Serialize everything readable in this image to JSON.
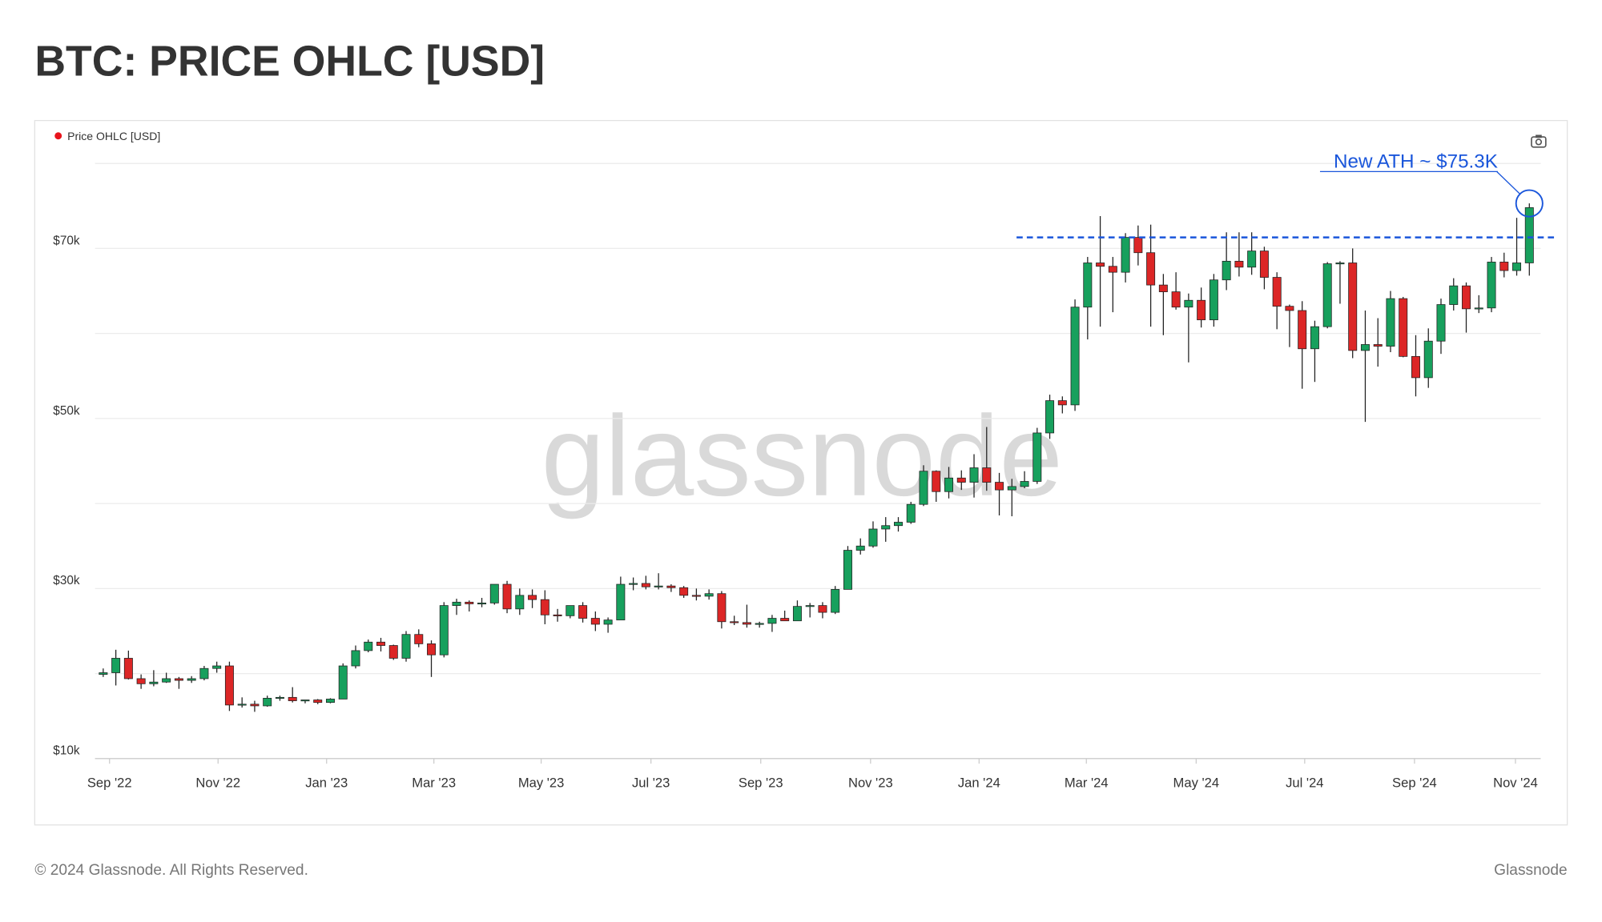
{
  "header": {
    "title": "BTC: PRICE OHLC [USD]"
  },
  "chart_data": {
    "type": "candlestick",
    "series_name": "Price OHLC [USD]",
    "legend_color": "#e8141c",
    "up_color": "#17a05d",
    "down_color": "#dc2626",
    "watermark": "glassnode",
    "ylim": [
      10000,
      80000
    ],
    "yticks": [
      {
        "value": 10000,
        "label": "$10k"
      },
      {
        "value": 30000,
        "label": "$30k"
      },
      {
        "value": 50000,
        "label": "$50k"
      },
      {
        "value": 70000,
        "label": "$70k"
      }
    ],
    "ygrid": [
      20000,
      40000,
      60000,
      80000
    ],
    "xlim": [
      -0.65,
      113.9
    ],
    "xticks": [
      {
        "value": 0.5,
        "label": "Sep '22"
      },
      {
        "value": 9.1,
        "label": "Nov '22"
      },
      {
        "value": 17.7,
        "label": "Jan '23"
      },
      {
        "value": 26.2,
        "label": "Mar '23"
      },
      {
        "value": 34.7,
        "label": "May '23"
      },
      {
        "value": 43.4,
        "label": "Jul '23"
      },
      {
        "value": 52.1,
        "label": "Sep '23"
      },
      {
        "value": 60.8,
        "label": "Nov '23"
      },
      {
        "value": 69.4,
        "label": "Jan '24"
      },
      {
        "value": 77.9,
        "label": "Mar '24"
      },
      {
        "value": 86.6,
        "label": "May '24"
      },
      {
        "value": 95.2,
        "label": "Jul '24"
      },
      {
        "value": 103.9,
        "label": "Sep '24"
      },
      {
        "value": 111.9,
        "label": "Nov '24"
      }
    ],
    "open": [
      19900,
      20100,
      21800,
      19400,
      18800,
      19000,
      19400,
      19200,
      19400,
      20600,
      20900,
      16300,
      16400,
      16200,
      17100,
      17200,
      16800,
      16900,
      16600,
      17000,
      20900,
      22700,
      23700,
      23300,
      21800,
      24600,
      23500,
      22200,
      28000,
      28400,
      28200,
      28300,
      30500,
      27600,
      29200,
      28700,
      26900,
      26800,
      28000,
      26500,
      25800,
      26300,
      30500,
      30600,
      30200,
      30300,
      30100,
      29200,
      29100,
      29400,
      26100,
      26000,
      25800,
      25900,
      26500,
      26200,
      27900,
      28000,
      27200,
      29900,
      34500,
      35000,
      37000,
      37400,
      37800,
      39900,
      43800,
      41400,
      43000,
      42500,
      44200,
      42500,
      41600,
      42000,
      42600,
      48300,
      52100,
      51600,
      63100,
      68300,
      67900,
      67200,
      71300,
      69500,
      65700,
      64900,
      63100,
      63900,
      61600,
      66300,
      68500,
      67800,
      69700,
      66600,
      63200,
      62700,
      58200,
      60800,
      68200,
      68300,
      58000,
      58700,
      58500,
      64100,
      57300,
      54800,
      59100,
      63400,
      65600,
      62900,
      63000,
      68400,
      67400,
      68300
    ],
    "high": [
      20600,
      22800,
      22700,
      19900,
      20400,
      20100,
      19600,
      19700,
      20900,
      21400,
      21400,
      17200,
      16800,
      17400,
      17400,
      18400,
      16900,
      17000,
      17100,
      21200,
      23300,
      24000,
      24200,
      23400,
      25000,
      25200,
      23900,
      28400,
      28800,
      28600,
      28900,
      30500,
      30900,
      30000,
      29900,
      29800,
      27600,
      28000,
      28400,
      27300,
      26600,
      31400,
      31300,
      31500,
      31800,
      30500,
      30300,
      30000,
      29900,
      29700,
      26800,
      28100,
      26100,
      26900,
      27400,
      28600,
      28300,
      28400,
      30300,
      35000,
      35900,
      37900,
      38400,
      38400,
      40200,
      44500,
      43900,
      44300,
      43900,
      45800,
      49000,
      43600,
      42900,
      43800,
      48900,
      52800,
      52600,
      64000,
      69000,
      73800,
      69000,
      71800,
      72700,
      72800,
      67000,
      67200,
      64700,
      65400,
      67000,
      71900,
      71900,
      71900,
      70200,
      67200,
      63400,
      63800,
      61500,
      68400,
      68500,
      70000,
      62700,
      61800,
      65000,
      64300,
      59800,
      60600,
      64100,
      66500,
      66000,
      64500,
      69000,
      69500,
      73600,
      75300
    ],
    "low": [
      19600,
      18600,
      19300,
      18200,
      18500,
      18900,
      18200,
      18900,
      19200,
      20100,
      15600,
      16000,
      15500,
      16100,
      16800,
      16600,
      16500,
      16400,
      16500,
      17000,
      20600,
      22500,
      22600,
      21600,
      21400,
      23100,
      19600,
      21900,
      26900,
      27300,
      27800,
      28100,
      27100,
      26900,
      27700,
      25800,
      26100,
      26500,
      26000,
      25000,
      24800,
      26300,
      29800,
      29900,
      29900,
      29600,
      28900,
      28600,
      28700,
      25300,
      25700,
      25400,
      25400,
      24900,
      26400,
      26200,
      26600,
      26500,
      27000,
      29900,
      34000,
      34800,
      35500,
      36700,
      37600,
      39700,
      40200,
      40600,
      41600,
      40700,
      41500,
      38600,
      38500,
      41800,
      42300,
      47600,
      50600,
      50900,
      59300,
      60800,
      62500,
      66000,
      68000,
      60800,
      59800,
      62800,
      56600,
      60700,
      60800,
      65100,
      66700,
      66900,
      65200,
      60500,
      58400,
      53500,
      54300,
      60600,
      63500,
      57100,
      49600,
      56100,
      57800,
      57200,
      52600,
      53600,
      57600,
      62700,
      60100,
      62400,
      62500,
      66600,
      66800,
      66800
    ],
    "close": [
      20100,
      21800,
      19400,
      18800,
      19000,
      19400,
      19200,
      19400,
      20600,
      20900,
      16300,
      16400,
      16200,
      17100,
      17200,
      16800,
      16900,
      16600,
      17000,
      20900,
      22700,
      23700,
      23300,
      21800,
      24600,
      23500,
      22200,
      28000,
      28400,
      28200,
      28300,
      30500,
      27600,
      29200,
      28700,
      26900,
      26800,
      28000,
      26500,
      25800,
      26300,
      30500,
      30600,
      30200,
      30300,
      30100,
      29200,
      29100,
      29400,
      26100,
      26000,
      25800,
      25900,
      26500,
      26200,
      27900,
      28000,
      27200,
      29900,
      34500,
      35000,
      37000,
      37400,
      37800,
      39900,
      43800,
      41400,
      43000,
      42500,
      44200,
      42500,
      41600,
      42000,
      42600,
      48300,
      52100,
      51600,
      63100,
      68300,
      67900,
      67200,
      71300,
      69500,
      65700,
      64900,
      63100,
      63900,
      61600,
      66300,
      68500,
      67800,
      69700,
      66600,
      63200,
      62700,
      58200,
      60800,
      68200,
      68300,
      58000,
      58700,
      58500,
      64100,
      57300,
      54800,
      59100,
      63400,
      65600,
      62900,
      63000,
      68400,
      67400,
      68300,
      74800
    ],
    "annotation": {
      "text": "New ATH ~ $75.3K",
      "level": 71300,
      "color": "#1a56db"
    }
  },
  "footer": {
    "copyright": "© 2024 Glassnode. All Rights Reserved.",
    "brand": "Glassnode"
  }
}
